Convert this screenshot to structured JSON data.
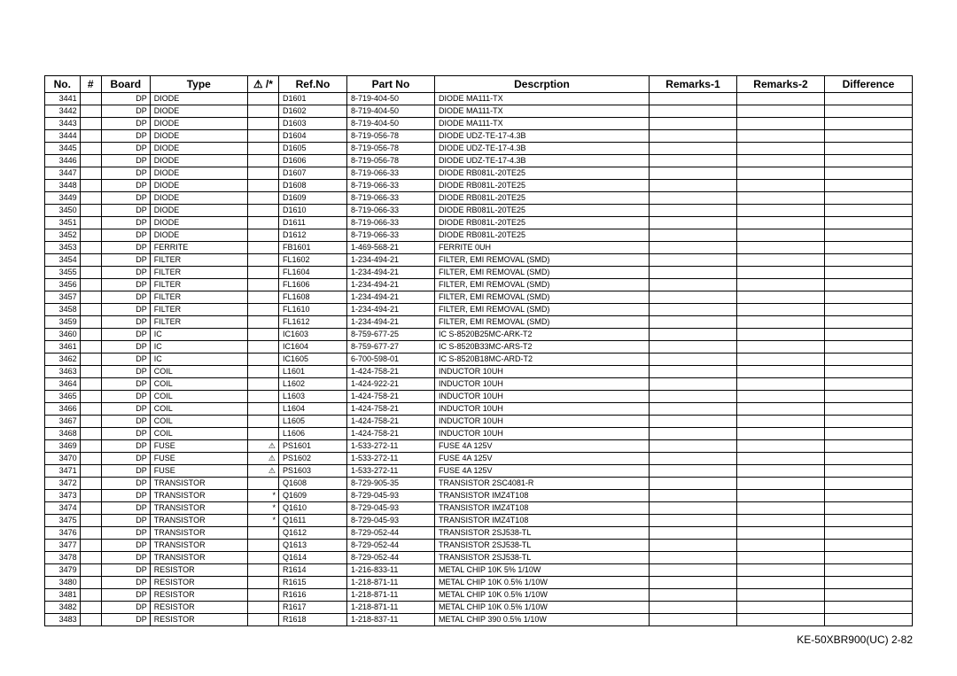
{
  "columns": [
    "No.",
    "#",
    "Board",
    "Type",
    "⚠ /*",
    "Ref.No",
    "Part No",
    "Descrption",
    "Remarks-1",
    "Remarks-2",
    "Difference"
  ],
  "rows": [
    [
      "3441",
      "",
      "DP",
      "DIODE",
      "",
      "D1601",
      "8-719-404-50",
      "DIODE MA111-TX",
      "",
      "",
      ""
    ],
    [
      "3442",
      "",
      "DP",
      "DIODE",
      "",
      "D1602",
      "8-719-404-50",
      "DIODE MA111-TX",
      "",
      "",
      ""
    ],
    [
      "3443",
      "",
      "DP",
      "DIODE",
      "",
      "D1603",
      "8-719-404-50",
      "DIODE MA111-TX",
      "",
      "",
      ""
    ],
    [
      "3444",
      "",
      "DP",
      "DIODE",
      "",
      "D1604",
      "8-719-056-78",
      "DIODE UDZ-TE-17-4.3B",
      "",
      "",
      ""
    ],
    [
      "3445",
      "",
      "DP",
      "DIODE",
      "",
      "D1605",
      "8-719-056-78",
      "DIODE UDZ-TE-17-4.3B",
      "",
      "",
      ""
    ],
    [
      "3446",
      "",
      "DP",
      "DIODE",
      "",
      "D1606",
      "8-719-056-78",
      "DIODE UDZ-TE-17-4.3B",
      "",
      "",
      ""
    ],
    [
      "3447",
      "",
      "DP",
      "DIODE",
      "",
      "D1607",
      "8-719-066-33",
      "DIODE RB081L-20TE25",
      "",
      "",
      ""
    ],
    [
      "3448",
      "",
      "DP",
      "DIODE",
      "",
      "D1608",
      "8-719-066-33",
      "DIODE RB081L-20TE25",
      "",
      "",
      ""
    ],
    [
      "3449",
      "",
      "DP",
      "DIODE",
      "",
      "D1609",
      "8-719-066-33",
      "DIODE RB081L-20TE25",
      "",
      "",
      ""
    ],
    [
      "3450",
      "",
      "DP",
      "DIODE",
      "",
      "D1610",
      "8-719-066-33",
      "DIODE RB081L-20TE25",
      "",
      "",
      ""
    ],
    [
      "3451",
      "",
      "DP",
      "DIODE",
      "",
      "D1611",
      "8-719-066-33",
      "DIODE RB081L-20TE25",
      "",
      "",
      ""
    ],
    [
      "3452",
      "",
      "DP",
      "DIODE",
      "",
      "D1612",
      "8-719-066-33",
      "DIODE RB081L-20TE25",
      "",
      "",
      ""
    ],
    [
      "3453",
      "",
      "DP",
      "FERRITE",
      "",
      "FB1601",
      "1-469-568-21",
      "FERRITE       0UH",
      "",
      "",
      ""
    ],
    [
      "3454",
      "",
      "DP",
      "FILTER",
      "",
      "FL1602",
      "1-234-494-21",
      "FILTER, EMI REMOVAL (SMD)",
      "",
      "",
      ""
    ],
    [
      "3455",
      "",
      "DP",
      "FILTER",
      "",
      "FL1604",
      "1-234-494-21",
      "FILTER, EMI REMOVAL (SMD)",
      "",
      "",
      ""
    ],
    [
      "3456",
      "",
      "DP",
      "FILTER",
      "",
      "FL1606",
      "1-234-494-21",
      "FILTER, EMI REMOVAL (SMD)",
      "",
      "",
      ""
    ],
    [
      "3457",
      "",
      "DP",
      "FILTER",
      "",
      "FL1608",
      "1-234-494-21",
      "FILTER, EMI REMOVAL (SMD)",
      "",
      "",
      ""
    ],
    [
      "3458",
      "",
      "DP",
      "FILTER",
      "",
      "FL1610",
      "1-234-494-21",
      "FILTER, EMI REMOVAL (SMD)",
      "",
      "",
      ""
    ],
    [
      "3459",
      "",
      "DP",
      "FILTER",
      "",
      "FL1612",
      "1-234-494-21",
      "FILTER, EMI REMOVAL (SMD)",
      "",
      "",
      ""
    ],
    [
      "3460",
      "",
      "DP",
      "IC",
      "",
      "IC1603",
      "8-759-677-25",
      "IC S-8520B25MC-ARK-T2",
      "",
      "",
      ""
    ],
    [
      "3461",
      "",
      "DP",
      "IC",
      "",
      "IC1604",
      "8-759-677-27",
      "IC S-8520B33MC-ARS-T2",
      "",
      "",
      ""
    ],
    [
      "3462",
      "",
      "DP",
      "IC",
      "",
      "IC1605",
      "6-700-598-01",
      "IC S-8520B18MC-ARD-T2",
      "",
      "",
      ""
    ],
    [
      "3463",
      "",
      "DP",
      "COIL",
      "",
      "L1601",
      "1-424-758-21",
      "INDUCTOR       10UH",
      "",
      "",
      ""
    ],
    [
      "3464",
      "",
      "DP",
      "COIL",
      "",
      "L1602",
      "1-424-922-21",
      "INDUCTOR       10UH",
      "",
      "",
      ""
    ],
    [
      "3465",
      "",
      "DP",
      "COIL",
      "",
      "L1603",
      "1-424-758-21",
      "INDUCTOR       10UH",
      "",
      "",
      ""
    ],
    [
      "3466",
      "",
      "DP",
      "COIL",
      "",
      "L1604",
      "1-424-758-21",
      "INDUCTOR       10UH",
      "",
      "",
      ""
    ],
    [
      "3467",
      "",
      "DP",
      "COIL",
      "",
      "L1605",
      "1-424-758-21",
      "INDUCTOR       10UH",
      "",
      "",
      ""
    ],
    [
      "3468",
      "",
      "DP",
      "COIL",
      "",
      "L1606",
      "1-424-758-21",
      "INDUCTOR       10UH",
      "",
      "",
      ""
    ],
    [
      "3469",
      "",
      "DP",
      "FUSE",
      "⚠",
      "PS1601",
      "1-533-272-11",
      "FUSE               4A       125V",
      "",
      "",
      ""
    ],
    [
      "3470",
      "",
      "DP",
      "FUSE",
      "⚠",
      "PS1602",
      "1-533-272-11",
      "FUSE               4A       125V",
      "",
      "",
      ""
    ],
    [
      "3471",
      "",
      "DP",
      "FUSE",
      "⚠",
      "PS1603",
      "1-533-272-11",
      "FUSE               4A       125V",
      "",
      "",
      ""
    ],
    [
      "3472",
      "",
      "DP",
      "TRANSISTOR",
      "",
      "Q1608",
      "8-729-905-35",
      "TRANSISTOR 2SC4081-R",
      "",
      "",
      ""
    ],
    [
      "3473",
      "",
      "DP",
      "TRANSISTOR",
      "*",
      "Q1609",
      "8-729-045-93",
      "TRANSISTOR IMZ4T108",
      "",
      "",
      ""
    ],
    [
      "3474",
      "",
      "DP",
      "TRANSISTOR",
      "*",
      "Q1610",
      "8-729-045-93",
      "TRANSISTOR IMZ4T108",
      "",
      "",
      ""
    ],
    [
      "3475",
      "",
      "DP",
      "TRANSISTOR",
      "*",
      "Q1611",
      "8-729-045-93",
      "TRANSISTOR IMZ4T108",
      "",
      "",
      ""
    ],
    [
      "3476",
      "",
      "DP",
      "TRANSISTOR",
      "",
      "Q1612",
      "8-729-052-44",
      "TRANSISTOR 2SJ538-TL",
      "",
      "",
      ""
    ],
    [
      "3477",
      "",
      "DP",
      "TRANSISTOR",
      "",
      "Q1613",
      "8-729-052-44",
      "TRANSISTOR 2SJ538-TL",
      "",
      "",
      ""
    ],
    [
      "3478",
      "",
      "DP",
      "TRANSISTOR",
      "",
      "Q1614",
      "8-729-052-44",
      "TRANSISTOR 2SJ538-TL",
      "",
      "",
      ""
    ],
    [
      "3479",
      "",
      "DP",
      "RESISTOR",
      "",
      "R1614",
      "1-216-833-11",
      "METAL CHIP     10K   5%    1/10W",
      "",
      "",
      ""
    ],
    [
      "3480",
      "",
      "DP",
      "RESISTOR",
      "",
      "R1615",
      "1-218-871-11",
      "METAL CHIP     10K   0.5%  1/10W",
      "",
      "",
      ""
    ],
    [
      "3481",
      "",
      "DP",
      "RESISTOR",
      "",
      "R1616",
      "1-218-871-11",
      "METAL CHIP     10K   0.5%  1/10W",
      "",
      "",
      ""
    ],
    [
      "3482",
      "",
      "DP",
      "RESISTOR",
      "",
      "R1617",
      "1-218-871-11",
      "METAL CHIP     10K   0.5%  1/10W",
      "",
      "",
      ""
    ],
    [
      "3483",
      "",
      "DP",
      "RESISTOR",
      "",
      "R1618",
      "1-218-837-11",
      "METAL CHIP     390   0.5%  1/10W",
      "",
      "",
      ""
    ]
  ],
  "footer": "KE-50XBR900(UC)    2-82"
}
